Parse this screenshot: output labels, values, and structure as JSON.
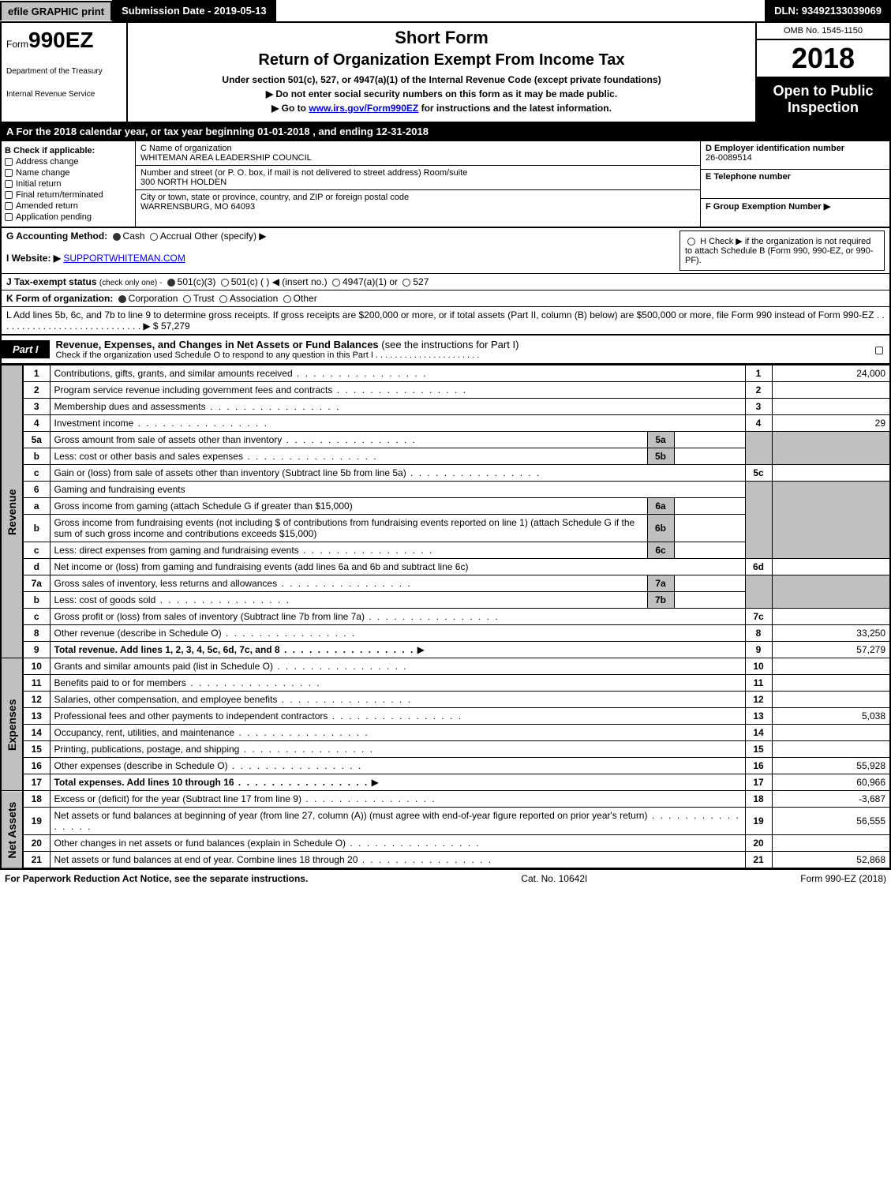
{
  "top": {
    "efile": "efile GRAPHIC print",
    "submission": "Submission Date - 2019-05-13",
    "dln": "DLN: 93492133039069"
  },
  "header": {
    "form_prefix": "Form",
    "form_number": "990EZ",
    "short_form": "Short Form",
    "title": "Return of Organization Exempt From Income Tax",
    "under": "Under section 501(c), 527, or 4947(a)(1) of the Internal Revenue Code (except private foundations)",
    "ssn_note": "▶ Do not enter social security numbers on this form as it may be made public.",
    "goto": "▶ Go to ",
    "goto_link": "www.irs.gov/Form990EZ",
    "goto_suffix": " for instructions and the latest information.",
    "dept1": "Department of the Treasury",
    "dept2": "Internal Revenue Service",
    "omb": "OMB No. 1545-1150",
    "year": "2018",
    "open": "Open to Public Inspection"
  },
  "rowA": {
    "text_prefix": "A  For the 2018 calendar year, or tax year beginning ",
    "begin": "01-01-2018",
    "middle": " , and ending ",
    "end": "12-31-2018"
  },
  "colB": {
    "label": "B  Check if applicable:",
    "items": [
      "Address change",
      "Name change",
      "Initial return",
      "Final return/terminated",
      "Amended return",
      "Application pending"
    ]
  },
  "colC": {
    "c_label": "C Name of organization",
    "org_name": "WHITEMAN AREA LEADERSHIP COUNCIL",
    "street_label": "Number and street (or P. O. box, if mail is not delivered to street address)   Room/suite",
    "street": "300 NORTH HOLDEN",
    "city_label": "City or town, state or province, country, and ZIP or foreign postal code",
    "city": "WARRENSBURG, MO  64093"
  },
  "colD": {
    "d_label": "D Employer identification number",
    "ein": "26-0089514",
    "e_label": "E Telephone number",
    "phone": "",
    "f_label": "F Group Exemption Number  ▶"
  },
  "ghi": {
    "g_label": "G Accounting Method:",
    "g_cash": "Cash",
    "g_accrual": "Accrual",
    "g_other": "Other (specify) ▶",
    "h_text": "H  Check ▶   if the organization is not required to attach Schedule B (Form 990, 990-EZ, or 990-PF).",
    "i_label": "I Website: ▶",
    "i_value": "SUPPORTWHITEMAN.COM",
    "j_label": "J Tax-exempt status",
    "j_note": "(check only one) -",
    "j_501c3": "501(c)(3)",
    "j_501c": "501(c) (   ) ◀ (insert no.)",
    "j_4947": "4947(a)(1) or",
    "j_527": "527",
    "k_label": "K Form of organization:",
    "k_corp": "Corporation",
    "k_trust": "Trust",
    "k_assoc": "Association",
    "k_other": "Other",
    "l_text": "L Add lines 5b, 6c, and 7b to line 9 to determine gross receipts. If gross receipts are $200,000 or more, or if total assets (Part II, column (B) below) are $500,000 or more, file Form 990 instead of Form 990-EZ  .  .  .  .  .  .  .  .  .  .  .  .  .  .  .  .  .  .  .  .  .  .  .  .  .  .  .  .  ▶ $",
    "l_value": "57,279"
  },
  "part1": {
    "label": "Part I",
    "title": "Revenue, Expenses, and Changes in Net Assets or Fund Balances",
    "title_suffix": " (see the instructions for Part I)",
    "check_line": "Check if the organization used Schedule O to respond to any question in this Part I  .  .  .  .  .  .  .  .  .  .  .  .  .  .  .  .  .  .  .  .  .  ."
  },
  "sidelabels": {
    "revenue": "Revenue",
    "expenses": "Expenses",
    "netassets": "Net Assets"
  },
  "lines": {
    "1": {
      "num": "1",
      "desc": "Contributions, gifts, grants, and similar amounts received",
      "val": "24,000"
    },
    "2": {
      "num": "2",
      "desc": "Program service revenue including government fees and contracts",
      "val": ""
    },
    "3": {
      "num": "3",
      "desc": "Membership dues and assessments",
      "val": ""
    },
    "4": {
      "num": "4",
      "desc": "Investment income",
      "val": "29"
    },
    "5a": {
      "num": "5a",
      "desc": "Gross amount from sale of assets other than inventory",
      "sub": "5a",
      "subval": ""
    },
    "5b": {
      "num": "b",
      "desc": "Less: cost or other basis and sales expenses",
      "sub": "5b",
      "subval": ""
    },
    "5c": {
      "num": "c",
      "desc": "Gain or (loss) from sale of assets other than inventory (Subtract line 5b from line 5a)",
      "ln": "5c",
      "val": ""
    },
    "6": {
      "num": "6",
      "desc": "Gaming and fundraising events"
    },
    "6a": {
      "num": "a",
      "desc": "Gross income from gaming (attach Schedule G if greater than $15,000)",
      "sub": "6a",
      "subval": ""
    },
    "6b": {
      "num": "b",
      "desc": "Gross income from fundraising events (not including $                    of contributions from fundraising events reported on line 1) (attach Schedule G if the sum of such gross income and contributions exceeds $15,000)",
      "sub": "6b",
      "subval": ""
    },
    "6c": {
      "num": "c",
      "desc": "Less: direct expenses from gaming and fundraising events",
      "sub": "6c",
      "subval": ""
    },
    "6d": {
      "num": "d",
      "desc": "Net income or (loss) from gaming and fundraising events (add lines 6a and 6b and subtract line 6c)",
      "ln": "6d",
      "val": ""
    },
    "7a": {
      "num": "7a",
      "desc": "Gross sales of inventory, less returns and allowances",
      "sub": "7a",
      "subval": ""
    },
    "7b": {
      "num": "b",
      "desc": "Less: cost of goods sold",
      "sub": "7b",
      "subval": ""
    },
    "7c": {
      "num": "c",
      "desc": "Gross profit or (loss) from sales of inventory (Subtract line 7b from line 7a)",
      "ln": "7c",
      "val": ""
    },
    "8": {
      "num": "8",
      "desc": "Other revenue (describe in Schedule O)",
      "val": "33,250"
    },
    "9": {
      "num": "9",
      "desc": "Total revenue. Add lines 1, 2, 3, 4, 5c, 6d, 7c, and 8",
      "val": "57,279",
      "bold": true
    },
    "10": {
      "num": "10",
      "desc": "Grants and similar amounts paid (list in Schedule O)",
      "val": ""
    },
    "11": {
      "num": "11",
      "desc": "Benefits paid to or for members",
      "val": ""
    },
    "12": {
      "num": "12",
      "desc": "Salaries, other compensation, and employee benefits",
      "val": ""
    },
    "13": {
      "num": "13",
      "desc": "Professional fees and other payments to independent contractors",
      "val": "5,038"
    },
    "14": {
      "num": "14",
      "desc": "Occupancy, rent, utilities, and maintenance",
      "val": ""
    },
    "15": {
      "num": "15",
      "desc": "Printing, publications, postage, and shipping",
      "val": ""
    },
    "16": {
      "num": "16",
      "desc": "Other expenses (describe in Schedule O)",
      "val": "55,928"
    },
    "17": {
      "num": "17",
      "desc": "Total expenses. Add lines 10 through 16",
      "val": "60,966",
      "bold": true
    },
    "18": {
      "num": "18",
      "desc": "Excess or (deficit) for the year (Subtract line 17 from line 9)",
      "val": "-3,687"
    },
    "19": {
      "num": "19",
      "desc": "Net assets or fund balances at beginning of year (from line 27, column (A)) (must agree with end-of-year figure reported on prior year's return)",
      "val": "56,555"
    },
    "20": {
      "num": "20",
      "desc": "Other changes in net assets or fund balances (explain in Schedule O)",
      "val": ""
    },
    "21": {
      "num": "21",
      "desc": "Net assets or fund balances at end of year. Combine lines 18 through 20",
      "val": "52,868"
    }
  },
  "footer": {
    "left": "For Paperwork Reduction Act Notice, see the separate instructions.",
    "center": "Cat. No. 10642I",
    "right": "Form 990-EZ (2018)"
  },
  "colors": {
    "black": "#000000",
    "grey": "#c0c0c0",
    "link": "#0000ee"
  }
}
